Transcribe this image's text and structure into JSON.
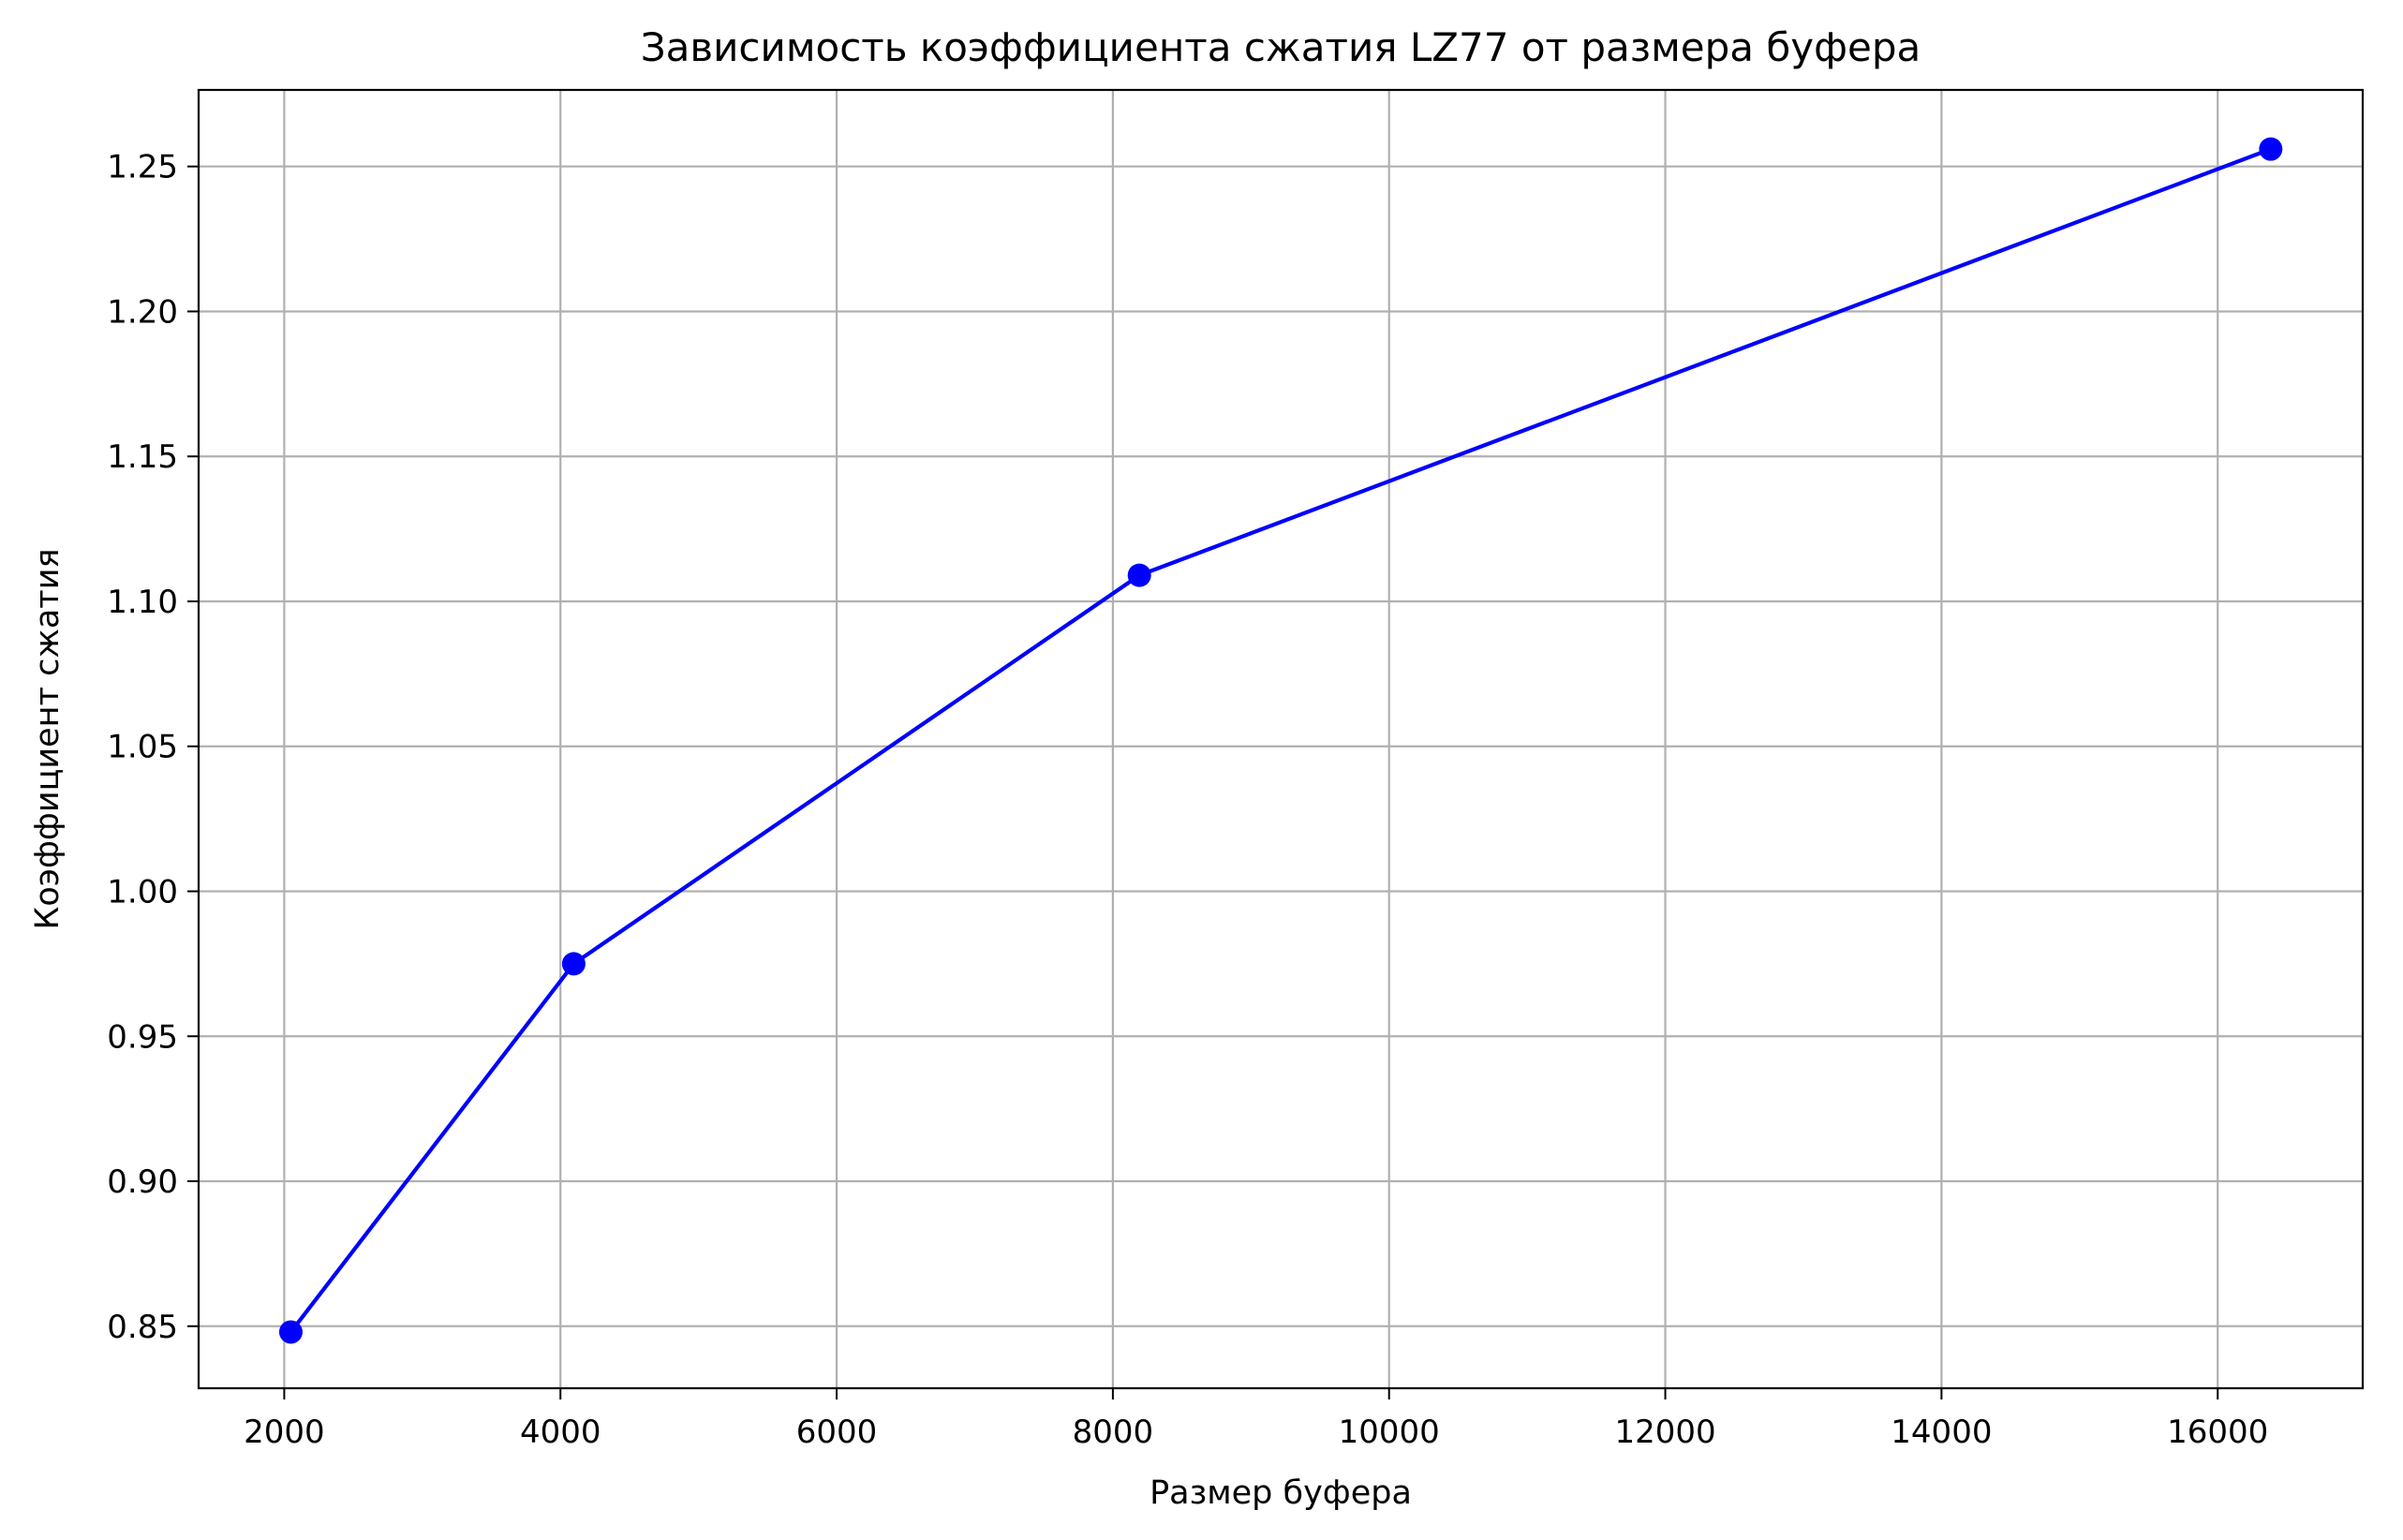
{
  "chart_data": {
    "type": "line",
    "title": "Зависимость коэффициента сжатия LZ77 от размера буфера",
    "xlabel": "Размер буфера",
    "ylabel": "Коэффициент сжатия",
    "x": [
      2048,
      4096,
      8192,
      16384
    ],
    "series": [
      {
        "values": [
          0.848,
          0.975,
          1.109,
          1.256
        ],
        "color": "#0000ff",
        "marker": "circle"
      }
    ],
    "xlim": [
      1380,
      17050
    ],
    "ylim": [
      0.8286,
      1.2764
    ],
    "xticks": [
      2000,
      4000,
      6000,
      8000,
      10000,
      12000,
      14000,
      16000
    ],
    "xtick_labels": [
      "2000",
      "4000",
      "6000",
      "8000",
      "10000",
      "12000",
      "14000",
      "16000"
    ],
    "yticks": [
      0.85,
      0.9,
      0.95,
      1.0,
      1.05,
      1.1,
      1.15,
      1.2,
      1.25
    ],
    "ytick_labels": [
      "0.85",
      "0.90",
      "0.95",
      "1.00",
      "1.05",
      "1.10",
      "1.15",
      "1.20",
      "1.25"
    ],
    "grid": true,
    "legend": false
  }
}
